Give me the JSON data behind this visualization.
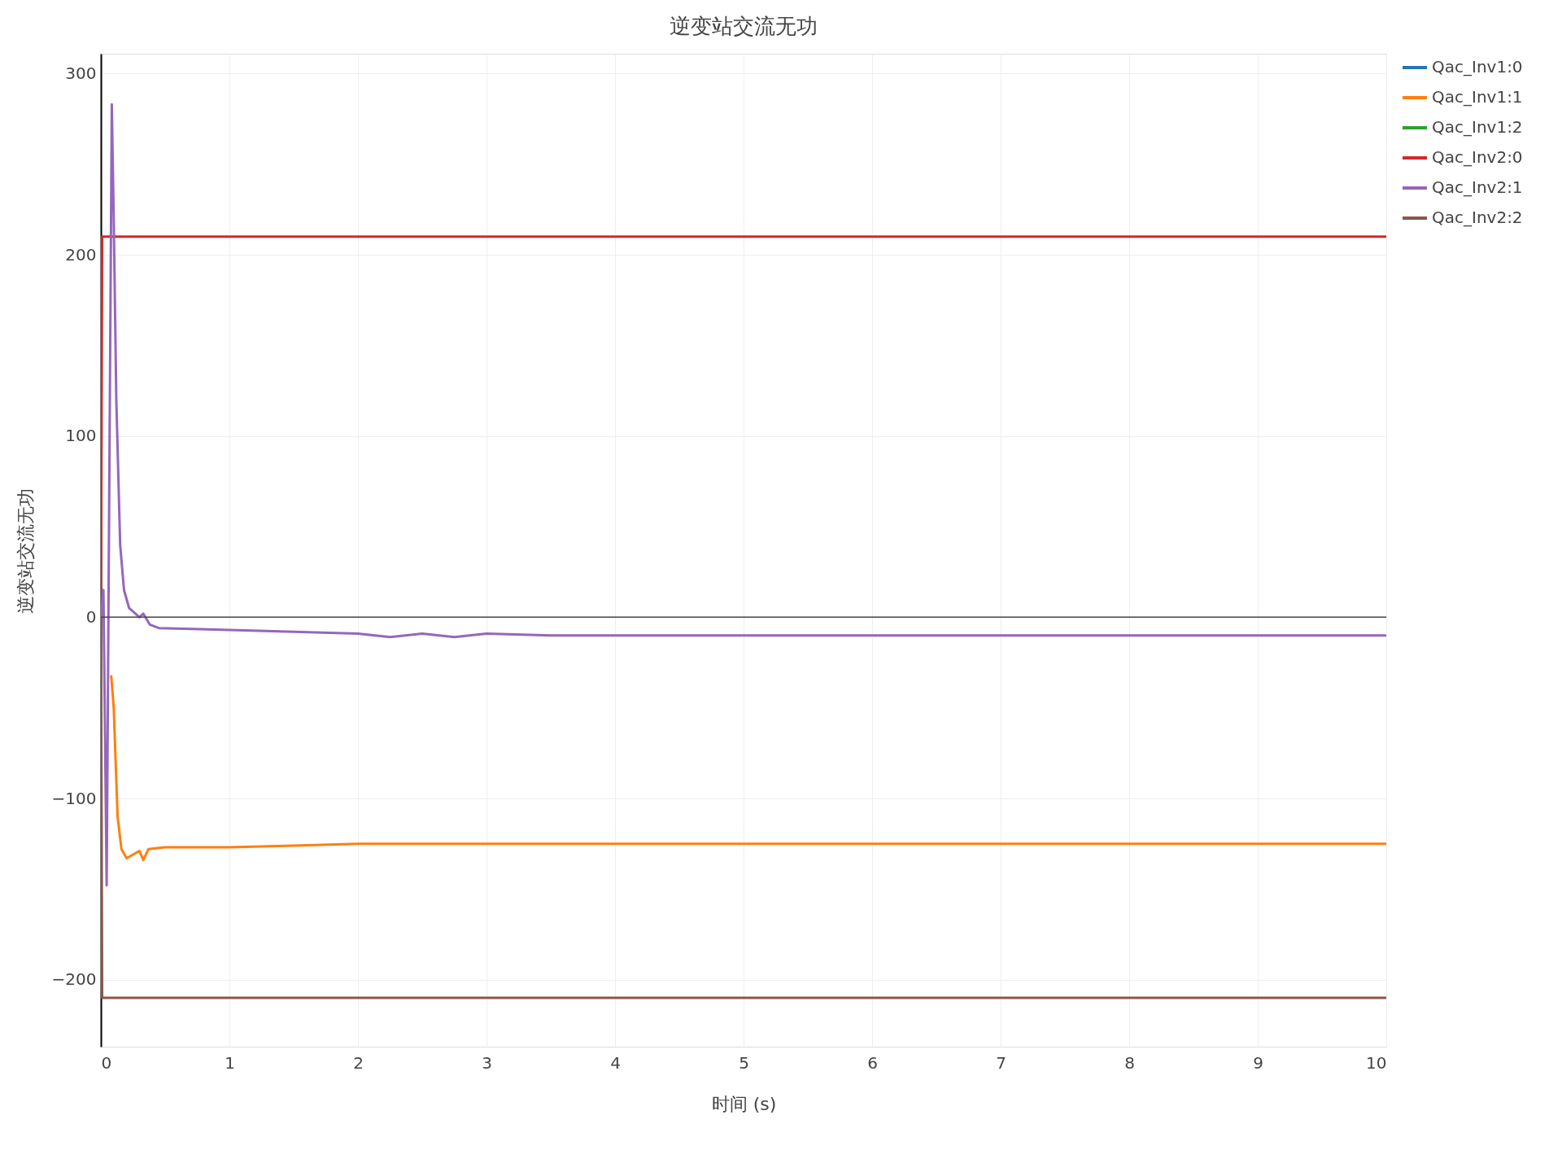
{
  "chart_data": {
    "type": "line",
    "title": "逆变站交流无功",
    "xlabel": "时间 (s)",
    "ylabel": "逆变站交流无功",
    "xlim": [
      0,
      10
    ],
    "xticks": [
      0,
      1,
      2,
      3,
      4,
      5,
      6,
      7,
      8,
      9,
      10
    ],
    "ylim": [
      -237,
      311
    ],
    "yticks": [
      {
        "value": -200,
        "label": "−200"
      },
      {
        "value": -100,
        "label": "−100"
      },
      0,
      100,
      200,
      300
    ],
    "grid": true,
    "legend": "top right",
    "line_style": "solid",
    "marker": "none",
    "ref_lines": [
      {
        "axis": "y",
        "value": 0,
        "label": null,
        "color": "#444444"
      }
    ],
    "series": [
      {
        "name": "Qac_Inv1:0",
        "color": "#1f77b4"
      },
      {
        "name": "Qac_Inv1:1",
        "color": "#ff7f0e",
        "x": [
          0.08,
          0.1,
          0.13,
          0.16,
          0.2,
          0.25,
          0.3,
          0.33,
          0.37,
          0.5,
          1,
          1.5,
          2,
          3,
          4,
          5,
          6,
          7,
          8,
          9,
          10
        ],
        "values": [
          -32,
          -50,
          -110,
          -128,
          -133,
          -131,
          -129,
          -134,
          -128,
          -127,
          -127,
          -126,
          -125,
          -125,
          -125,
          -125,
          -125,
          -125,
          -125,
          -125,
          -125
        ]
      },
      {
        "name": "Qac_Inv1:2",
        "color": "#2ca02c"
      },
      {
        "name": "Qac_Inv2:0",
        "color": "#d62728",
        "x": [
          0,
          0.01,
          10
        ],
        "values": [
          0,
          210,
          210
        ]
      },
      {
        "name": "Qac_Inv2:1",
        "color": "#9467bd",
        "x": [
          0,
          0.02,
          0.045,
          0.085,
          0.1,
          0.12,
          0.15,
          0.18,
          0.22,
          0.3,
          0.33,
          0.38,
          0.45,
          1,
          1.5,
          2,
          2.25,
          2.5,
          2.75,
          3,
          3.5,
          4,
          4.5,
          5,
          5.5,
          6,
          6.5,
          7,
          7.5,
          8,
          8.5,
          9,
          9.5,
          10
        ],
        "values": [
          0,
          15,
          -148,
          283,
          220,
          120,
          40,
          15,
          5,
          0,
          2,
          -4,
          -6,
          -7,
          -8,
          -9,
          -11,
          -9,
          -11,
          -9,
          -10,
          -10,
          -10,
          -10,
          -10,
          -10,
          -10,
          -10,
          -10,
          -10,
          -10,
          -10,
          -10,
          -10
        ]
      },
      {
        "name": "Qac_Inv2:2",
        "color": "#8c564b",
        "x": [
          0,
          0.01,
          10
        ],
        "values": [
          0,
          -210,
          -210
        ]
      }
    ]
  }
}
